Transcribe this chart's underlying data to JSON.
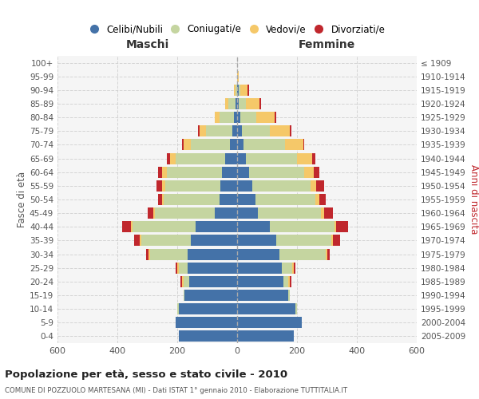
{
  "age_groups": [
    "0-4",
    "5-9",
    "10-14",
    "15-19",
    "20-24",
    "25-29",
    "30-34",
    "35-39",
    "40-44",
    "45-49",
    "50-54",
    "55-59",
    "60-64",
    "65-69",
    "70-74",
    "75-79",
    "80-84",
    "85-89",
    "90-94",
    "95-99",
    "100+"
  ],
  "birth_years": [
    "2005-2009",
    "2000-2004",
    "1995-1999",
    "1990-1994",
    "1985-1989",
    "1980-1984",
    "1975-1979",
    "1970-1974",
    "1965-1969",
    "1960-1964",
    "1955-1959",
    "1950-1954",
    "1945-1949",
    "1940-1944",
    "1935-1939",
    "1930-1934",
    "1925-1929",
    "1920-1924",
    "1915-1919",
    "1910-1914",
    "≤ 1909"
  ],
  "maschi": {
    "celibi": [
      195,
      205,
      195,
      175,
      160,
      165,
      165,
      155,
      140,
      75,
      60,
      55,
      50,
      40,
      25,
      15,
      10,
      5,
      0,
      0,
      0
    ],
    "coniugati": [
      0,
      0,
      5,
      5,
      20,
      30,
      125,
      165,
      210,
      200,
      185,
      185,
      185,
      165,
      130,
      90,
      50,
      25,
      5,
      0,
      0
    ],
    "vedovi": [
      0,
      0,
      0,
      0,
      5,
      5,
      5,
      5,
      5,
      5,
      5,
      10,
      15,
      20,
      25,
      20,
      15,
      10,
      5,
      0,
      0
    ],
    "divorziati": [
      0,
      0,
      0,
      0,
      5,
      5,
      10,
      20,
      30,
      20,
      15,
      20,
      15,
      10,
      5,
      5,
      0,
      0,
      0,
      0,
      0
    ]
  },
  "femmine": {
    "nubili": [
      190,
      215,
      195,
      170,
      155,
      150,
      140,
      130,
      110,
      70,
      60,
      50,
      40,
      30,
      20,
      15,
      10,
      5,
      5,
      0,
      0
    ],
    "coniugate": [
      0,
      0,
      5,
      5,
      15,
      35,
      155,
      185,
      215,
      210,
      200,
      195,
      185,
      170,
      140,
      95,
      55,
      25,
      5,
      0,
      0
    ],
    "vedove": [
      0,
      0,
      0,
      0,
      5,
      5,
      5,
      5,
      5,
      10,
      15,
      20,
      30,
      50,
      60,
      65,
      60,
      45,
      25,
      5,
      0
    ],
    "divorziate": [
      0,
      0,
      0,
      0,
      5,
      5,
      10,
      25,
      40,
      30,
      20,
      25,
      20,
      10,
      5,
      5,
      5,
      5,
      5,
      0,
      0
    ]
  },
  "colors": {
    "celibi_nubili": "#4472A8",
    "coniugati_e": "#C5D5A0",
    "vedovi_e": "#F5C869",
    "divorziati_e": "#C0272D"
  },
  "title": "Popolazione per età, sesso e stato civile - 2010",
  "subtitle": "COMUNE DI POZZUOLO MARTESANA (MI) - Dati ISTAT 1° gennaio 2010 - Elaborazione TUTTITALIA.IT",
  "xlabel_left": "Maschi",
  "xlabel_right": "Femmine",
  "ylabel_left": "Fasce di età",
  "ylabel_right": "Anni di nascita",
  "xlim": 600,
  "bg_color": "#ffffff",
  "plot_bg": "#f5f5f5",
  "grid_color": "#cccccc",
  "legend_labels": [
    "Celibi/Nubili",
    "Coniugati/e",
    "Vedovi/e",
    "Divorziati/e"
  ]
}
